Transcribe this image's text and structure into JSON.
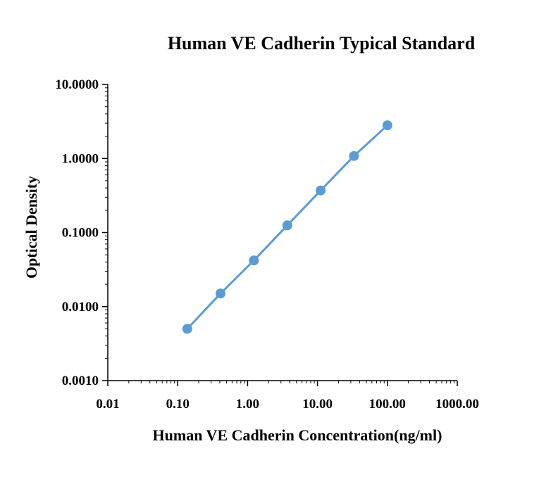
{
  "chart_data": {
    "type": "line",
    "title": "Human VE Cadherin Typical Standard",
    "xlabel": "Human VE Cadherin Concentration(ng/ml)",
    "ylabel": "Optical Density",
    "x_scale": "log",
    "y_scale": "log",
    "xlim": [
      0.01,
      1000
    ],
    "ylim": [
      0.001,
      10
    ],
    "x_ticks": [
      0.01,
      0.1,
      1,
      10,
      100,
      1000
    ],
    "x_tick_labels": [
      "0.01",
      "0.10",
      "1.00",
      "10.00",
      "100.00",
      "1000.00"
    ],
    "y_ticks": [
      0.001,
      0.01,
      0.1,
      1,
      10
    ],
    "y_tick_labels": [
      "0.0010",
      "0.0100",
      "0.1000",
      "1.0000",
      "10.0000"
    ],
    "grid": false,
    "series": [
      {
        "color": "#5b9bd5",
        "x": [
          0.137,
          0.41,
          1.23,
          3.7,
          11.1,
          33.3,
          100
        ],
        "y": [
          0.005,
          0.015,
          0.042,
          0.125,
          0.37,
          1.08,
          2.8
        ]
      }
    ]
  }
}
